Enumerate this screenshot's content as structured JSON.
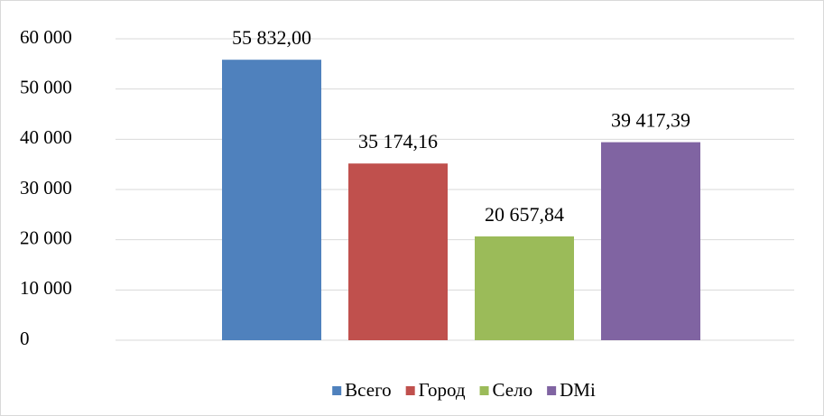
{
  "chart_data": {
    "type": "bar",
    "categories": [
      null
    ],
    "series": [
      {
        "name": "Всего",
        "color": "#4f81bd",
        "values": [
          55832.0
        ],
        "value_labels": [
          "55 832,00"
        ]
      },
      {
        "name": "Город",
        "color": "#c0504d",
        "values": [
          35174.16
        ],
        "value_labels": [
          "35 174,16"
        ]
      },
      {
        "name": "Село",
        "color": "#9bbb59",
        "values": [
          20657.84
        ],
        "value_labels": [
          "20 657,84"
        ]
      },
      {
        "name": "DMi",
        "color": "#8064a2",
        "values": [
          39417.39
        ],
        "value_labels": [
          "39 417,39"
        ]
      }
    ],
    "ylim": [
      0,
      60000
    ],
    "yticks": [
      0,
      {
        "value": 10000,
        "label": "10 000"
      },
      {
        "value": 20000,
        "label": "20 000"
      },
      {
        "value": 30000,
        "label": "30 000"
      },
      {
        "value": 40000,
        "label": "40 000"
      },
      {
        "value": 50000,
        "label": "50 000"
      },
      {
        "value": 60000,
        "label": "60 000"
      }
    ],
    "grid": true,
    "legend": "bottom"
  }
}
